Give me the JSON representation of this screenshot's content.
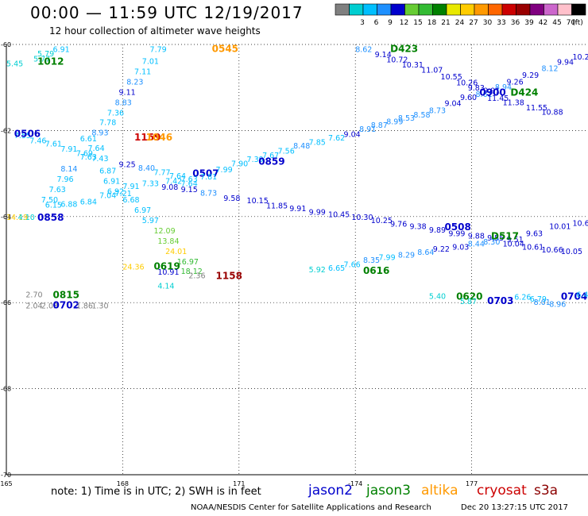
{
  "header": {
    "title": "00:00 — 11:59 UTC 12/19/2017",
    "subtitle": "12 hour collection of altimeter wave heights"
  },
  "footer": {
    "note": "note: 1) Time is in UTC; 2) SWH is in feet",
    "credit": "NOAA/NESDIS Center for Satellite Applications and Research",
    "timestamp": "Dec 20 13:27:15 UTC 2017"
  },
  "satellites": [
    {
      "name": "jason2",
      "color": "#0000cc"
    },
    {
      "name": "jason3",
      "color": "#008000"
    },
    {
      "name": "altika",
      "color": "#ff9900"
    },
    {
      "name": "cryosat",
      "color": "#cc0000"
    },
    {
      "name": "s3a",
      "color": "#8b0000"
    }
  ],
  "legend": {
    "unit": "(ft)",
    "bins": [
      {
        "label": "",
        "color": "#808080"
      },
      {
        "label": "3",
        "color": "#00ced1"
      },
      {
        "label": "6",
        "color": "#00bfff"
      },
      {
        "label": "9",
        "color": "#1e90ff"
      },
      {
        "label": "12",
        "color": "#0000cd"
      },
      {
        "label": "15",
        "color": "#66cc33"
      },
      {
        "label": "18",
        "color": "#33bb33"
      },
      {
        "label": "21",
        "color": "#008000"
      },
      {
        "label": "24",
        "color": "#e8e800"
      },
      {
        "label": "27",
        "color": "#ffcc00"
      },
      {
        "label": "30",
        "color": "#ff9900"
      },
      {
        "label": "33",
        "color": "#ff6600"
      },
      {
        "label": "36",
        "color": "#cc0000"
      },
      {
        "label": "39",
        "color": "#990000"
      },
      {
        "label": "42",
        "color": "#800080"
      },
      {
        "label": "45",
        "color": "#cc66cc"
      },
      {
        "label": "70",
        "color": "#ffc0cb"
      },
      {
        "label": "",
        "color": "#000000"
      }
    ]
  },
  "chart_data": {
    "type": "scatter",
    "title": "00:00 — 11:59 UTC 12/19/2017",
    "subtitle": "12 hour collection of altimeter wave heights",
    "xlim": [
      165,
      180
    ],
    "ylim": [
      -70,
      -60
    ],
    "x_ticks": [
      {
        "v": 165,
        "label": "165"
      },
      {
        "v": 168,
        "label": "168"
      },
      {
        "v": 171,
        "label": "171"
      },
      {
        "v": 174,
        "label": "-174"
      },
      {
        "v": 177,
        "label": "177"
      }
    ],
    "y_ticks": [
      {
        "v": -60,
        "label": "-60"
      },
      {
        "v": -62,
        "label": "-62"
      },
      {
        "v": -64,
        "label": "-64"
      },
      {
        "v": -66,
        "label": "-66"
      },
      {
        "v": -68,
        "label": "-68"
      },
      {
        "v": -70,
        "label": "-70"
      }
    ],
    "grid": true,
    "points": [
      {
        "x": 165.0,
        "y": -60.43,
        "t": "5.45",
        "c": "#00ced1"
      },
      {
        "x": 165.7,
        "y": -60.32,
        "t": "5.77",
        "c": "#00ced1"
      },
      {
        "x": 165.8,
        "y": -60.2,
        "t": "5.79",
        "c": "#00ced1"
      },
      {
        "x": 166.2,
        "y": -60.1,
        "t": "6.91",
        "c": "#00bfff"
      },
      {
        "x": 165.8,
        "y": -60.4,
        "t": "1012",
        "c": "#008000",
        "id": 1
      },
      {
        "x": 168.7,
        "y": -60.1,
        "t": "7.79",
        "c": "#00bfff"
      },
      {
        "x": 168.5,
        "y": -60.38,
        "t": "7.01",
        "c": "#00bfff"
      },
      {
        "x": 168.3,
        "y": -60.62,
        "t": "7.11",
        "c": "#00bfff"
      },
      {
        "x": 168.1,
        "y": -60.86,
        "t": "8.23",
        "c": "#1e90ff"
      },
      {
        "x": 167.9,
        "y": -61.1,
        "t": "9.11",
        "c": "#0000cd"
      },
      {
        "x": 167.8,
        "y": -61.34,
        "t": "8.83",
        "c": "#1e90ff"
      },
      {
        "x": 167.6,
        "y": -61.58,
        "t": "7.36",
        "c": "#00bfff"
      },
      {
        "x": 167.4,
        "y": -61.8,
        "t": "7.78",
        "c": "#00bfff"
      },
      {
        "x": 167.2,
        "y": -62.04,
        "t": "8.93",
        "c": "#1e90ff"
      },
      {
        "x": 170.3,
        "y": -60.1,
        "t": "0545",
        "c": "#ff9900",
        "id": 1
      },
      {
        "x": 165.2,
        "y": -62.1,
        "t": "7.55",
        "c": "#00bfff"
      },
      {
        "x": 165.6,
        "y": -62.22,
        "t": "7.46",
        "c": "#00bfff"
      },
      {
        "x": 166.0,
        "y": -62.3,
        "t": "7.61",
        "c": "#00bfff"
      },
      {
        "x": 166.4,
        "y": -62.42,
        "t": "7.91",
        "c": "#00bfff"
      },
      {
        "x": 166.8,
        "y": -62.52,
        "t": "7.69",
        "c": "#00bfff"
      },
      {
        "x": 166.9,
        "y": -62.18,
        "t": "6.61",
        "c": "#00bfff"
      },
      {
        "x": 167.1,
        "y": -62.4,
        "t": "7.64",
        "c": "#00bfff"
      },
      {
        "x": 167.2,
        "y": -62.64,
        "t": "7.43",
        "c": "#00bfff"
      },
      {
        "x": 166.9,
        "y": -62.6,
        "t": "7.63",
        "c": "#00bfff"
      },
      {
        "x": 166.4,
        "y": -62.88,
        "t": "8.14",
        "c": "#1e90ff"
      },
      {
        "x": 166.3,
        "y": -63.12,
        "t": "7.96",
        "c": "#00bfff"
      },
      {
        "x": 166.1,
        "y": -63.36,
        "t": "7.63",
        "c": "#00bfff"
      },
      {
        "x": 165.9,
        "y": -63.6,
        "t": "7.50",
        "c": "#00bfff"
      },
      {
        "x": 166.0,
        "y": -63.72,
        "t": "6.15",
        "c": "#00bfff"
      },
      {
        "x": 166.4,
        "y": -63.7,
        "t": "6.88",
        "c": "#00bfff"
      },
      {
        "x": 166.9,
        "y": -63.64,
        "t": "6.84",
        "c": "#00bfff"
      },
      {
        "x": 167.4,
        "y": -63.5,
        "t": "7.04",
        "c": "#00bfff"
      },
      {
        "x": 167.8,
        "y": -63.45,
        "t": "7.21",
        "c": "#00bfff"
      },
      {
        "x": 165.2,
        "y": -62.08,
        "t": "0506",
        "c": "#0000cc",
        "id": 1
      },
      {
        "x": 168.3,
        "y": -62.16,
        "t": "1159",
        "c": "#cc0000",
        "id": 1
      },
      {
        "x": 168.6,
        "y": -62.16,
        "t": "1046",
        "c": "#ff9900",
        "id": 1
      },
      {
        "x": 167.9,
        "y": -62.78,
        "t": "9.25",
        "c": "#0000cd"
      },
      {
        "x": 167.4,
        "y": -62.92,
        "t": "6.87",
        "c": "#00bfff"
      },
      {
        "x": 167.5,
        "y": -63.16,
        "t": "6.91",
        "c": "#00bfff"
      },
      {
        "x": 167.6,
        "y": -63.4,
        "t": "6.92",
        "c": "#00bfff"
      },
      {
        "x": 168.0,
        "y": -63.28,
        "t": "7.91",
        "c": "#00bfff"
      },
      {
        "x": 168.5,
        "y": -63.22,
        "t": "7.33",
        "c": "#00bfff"
      },
      {
        "x": 168.0,
        "y": -63.6,
        "t": "6.68",
        "c": "#00bfff"
      },
      {
        "x": 168.3,
        "y": -63.84,
        "t": "6.97",
        "c": "#00bfff"
      },
      {
        "x": 168.5,
        "y": -64.08,
        "t": "5.97",
        "c": "#00bfff"
      },
      {
        "x": 168.4,
        "y": -62.86,
        "t": "8.40",
        "c": "#1e90ff"
      },
      {
        "x": 168.8,
        "y": -62.96,
        "t": "7.77",
        "c": "#00bfff"
      },
      {
        "x": 169.2,
        "y": -63.04,
        "t": "7.64",
        "c": "#00bfff"
      },
      {
        "x": 169.5,
        "y": -63.12,
        "t": "7.63",
        "c": "#00bfff"
      },
      {
        "x": 169.1,
        "y": -63.16,
        "t": "7.42",
        "c": "#00bfff"
      },
      {
        "x": 169.5,
        "y": -63.22,
        "t": "7.64",
        "c": "#00bfff"
      },
      {
        "x": 169.8,
        "y": -63.0,
        "t": "0507",
        "c": "#0000cc",
        "id": 1
      },
      {
        "x": 170.0,
        "y": -63.06,
        "t": "7.81",
        "c": "#00bfff"
      },
      {
        "x": 170.4,
        "y": -62.9,
        "t": "7.99",
        "c": "#00bfff"
      },
      {
        "x": 170.8,
        "y": -62.76,
        "t": "7.90",
        "c": "#00bfff"
      },
      {
        "x": 171.2,
        "y": -62.66,
        "t": "7.39",
        "c": "#00bfff"
      },
      {
        "x": 171.6,
        "y": -62.56,
        "t": "7.67",
        "c": "#00bfff"
      },
      {
        "x": 172.0,
        "y": -62.46,
        "t": "7.56",
        "c": "#00bfff"
      },
      {
        "x": 172.4,
        "y": -62.34,
        "t": "8.48",
        "c": "#1e90ff"
      },
      {
        "x": 172.8,
        "y": -62.26,
        "t": "7.85",
        "c": "#00bfff"
      },
      {
        "x": 173.3,
        "y": -62.16,
        "t": "7.62",
        "c": "#00bfff"
      },
      {
        "x": 171.5,
        "y": -62.72,
        "t": "0859",
        "c": "#0000cc",
        "id": 1
      },
      {
        "x": 173.7,
        "y": -62.08,
        "t": "9.04",
        "c": "#0000cd"
      },
      {
        "x": 174.1,
        "y": -61.96,
        "t": "8.91",
        "c": "#1e90ff"
      },
      {
        "x": 174.4,
        "y": -61.86,
        "t": "8.87",
        "c": "#1e90ff"
      },
      {
        "x": 174.8,
        "y": -61.78,
        "t": "8.99",
        "c": "#1e90ff"
      },
      {
        "x": 175.1,
        "y": -61.7,
        "t": "8.53",
        "c": "#1e90ff"
      },
      {
        "x": 175.5,
        "y": -61.62,
        "t": "8.58",
        "c": "#1e90ff"
      },
      {
        "x": 175.9,
        "y": -61.52,
        "t": "8.73",
        "c": "#1e90ff"
      },
      {
        "x": 176.3,
        "y": -61.36,
        "t": "9.04",
        "c": "#0000cd"
      },
      {
        "x": 176.7,
        "y": -61.22,
        "t": "9.60",
        "c": "#0000cd"
      },
      {
        "x": 177.1,
        "y": -61.14,
        "t": "8.61",
        "c": "#1e90ff"
      },
      {
        "x": 177.3,
        "y": -61.06,
        "t": "9.91",
        "c": "#0000cd"
      },
      {
        "x": 177.6,
        "y": -60.98,
        "t": "8.94",
        "c": "#1e90ff"
      },
      {
        "x": 177.9,
        "y": -60.86,
        "t": "9.26",
        "c": "#0000cd"
      },
      {
        "x": 178.3,
        "y": -60.7,
        "t": "9.29",
        "c": "#0000cd"
      },
      {
        "x": 178.8,
        "y": -60.54,
        "t": "8.12",
        "c": "#1e90ff"
      },
      {
        "x": 179.2,
        "y": -60.4,
        "t": "9.94",
        "c": "#0000cd"
      },
      {
        "x": 179.6,
        "y": -60.28,
        "t": "10.23",
        "c": "#0000cd"
      },
      {
        "x": 177.2,
        "y": -61.12,
        "t": "0900",
        "c": "#0000cc",
        "id": 1
      },
      {
        "x": 178.0,
        "y": -61.12,
        "t": "D424",
        "c": "#008000",
        "id": 1
      },
      {
        "x": 174.0,
        "y": -60.1,
        "t": "8.62",
        "c": "#1e90ff"
      },
      {
        "x": 174.5,
        "y": -60.22,
        "t": "9.14",
        "c": "#0000cd"
      },
      {
        "x": 174.8,
        "y": -60.34,
        "t": "10.72",
        "c": "#0000cd"
      },
      {
        "x": 175.2,
        "y": -60.46,
        "t": "10.31",
        "c": "#0000cd"
      },
      {
        "x": 175.7,
        "y": -60.58,
        "t": "11.07",
        "c": "#0000cd"
      },
      {
        "x": 176.2,
        "y": -60.74,
        "t": "10.55",
        "c": "#0000cd"
      },
      {
        "x": 176.6,
        "y": -60.88,
        "t": "10.26",
        "c": "#0000cd"
      },
      {
        "x": 176.9,
        "y": -61.0,
        "t": "9.83",
        "c": "#0000cd"
      },
      {
        "x": 177.4,
        "y": -61.24,
        "t": "11.45",
        "c": "#0000cd"
      },
      {
        "x": 177.8,
        "y": -61.34,
        "t": "11.38",
        "c": "#0000cd"
      },
      {
        "x": 178.4,
        "y": -61.46,
        "t": "11.55",
        "c": "#0000cd"
      },
      {
        "x": 178.8,
        "y": -61.56,
        "t": "10.88",
        "c": "#0000cd"
      },
      {
        "x": 174.9,
        "y": -60.1,
        "t": "D423",
        "c": "#008000",
        "id": 1
      },
      {
        "x": 169.0,
        "y": -63.3,
        "t": "9.08",
        "c": "#0000cd"
      },
      {
        "x": 169.5,
        "y": -63.36,
        "t": "9.15",
        "c": "#0000cd"
      },
      {
        "x": 170.0,
        "y": -63.44,
        "t": "8.73",
        "c": "#1e90ff"
      },
      {
        "x": 170.6,
        "y": -63.56,
        "t": "9.58",
        "c": "#0000cd"
      },
      {
        "x": 171.2,
        "y": -63.62,
        "t": "10.15",
        "c": "#0000cd"
      },
      {
        "x": 171.7,
        "y": -63.74,
        "t": "11.85",
        "c": "#0000cd"
      },
      {
        "x": 172.3,
        "y": -63.8,
        "t": "9.91",
        "c": "#0000cd"
      },
      {
        "x": 172.8,
        "y": -63.88,
        "t": "9.99",
        "c": "#0000cd"
      },
      {
        "x": 173.3,
        "y": -63.94,
        "t": "10.45",
        "c": "#0000cd"
      },
      {
        "x": 173.9,
        "y": -64.0,
        "t": "10.30",
        "c": "#0000cd"
      },
      {
        "x": 174.4,
        "y": -64.08,
        "t": "10.25",
        "c": "#0000cd"
      },
      {
        "x": 174.9,
        "y": -64.16,
        "t": "9.76",
        "c": "#0000cd"
      },
      {
        "x": 175.4,
        "y": -64.22,
        "t": "9.38",
        "c": "#0000cd"
      },
      {
        "x": 175.9,
        "y": -64.3,
        "t": "9.89",
        "c": "#0000cd"
      },
      {
        "x": 176.4,
        "y": -64.38,
        "t": "9.99",
        "c": "#0000cd"
      },
      {
        "x": 176.9,
        "y": -64.44,
        "t": "9.88",
        "c": "#0000cd"
      },
      {
        "x": 177.4,
        "y": -64.48,
        "t": "9.55",
        "c": "#0000cd"
      },
      {
        "x": 177.9,
        "y": -64.52,
        "t": "9.51",
        "c": "#0000cd"
      },
      {
        "x": 178.4,
        "y": -64.38,
        "t": "9.63",
        "c": "#0000cd"
      },
      {
        "x": 179.0,
        "y": -64.22,
        "t": "10.01",
        "c": "#0000cd"
      },
      {
        "x": 179.6,
        "y": -64.14,
        "t": "10.63",
        "c": "#0000cd"
      },
      {
        "x": 176.3,
        "y": -64.24,
        "t": "0508",
        "c": "#0000cc",
        "id": 1
      },
      {
        "x": 177.5,
        "y": -64.46,
        "t": "D517",
        "c": "#008000",
        "id": 1
      },
      {
        "x": 165.0,
        "y": -64.0,
        "t": "14.19",
        "c": "#ffcc00"
      },
      {
        "x": 165.3,
        "y": -64.0,
        "t": "4.10",
        "c": "#00ced1"
      },
      {
        "x": 165.8,
        "y": -64.02,
        "t": "0858",
        "c": "#0000cc",
        "id": 1
      },
      {
        "x": 168.8,
        "y": -64.32,
        "t": "12.09",
        "c": "#66cc33"
      },
      {
        "x": 168.9,
        "y": -64.56,
        "t": "13.84",
        "c": "#66cc33"
      },
      {
        "x": 169.1,
        "y": -64.8,
        "t": "24.01",
        "c": "#ffcc00"
      },
      {
        "x": 169.4,
        "y": -65.04,
        "t": "16.97",
        "c": "#33bb33"
      },
      {
        "x": 169.5,
        "y": -65.26,
        "t": "18.12",
        "c": "#33bb33"
      },
      {
        "x": 168.0,
        "y": -65.16,
        "t": "24.36",
        "c": "#ffcc00"
      },
      {
        "x": 168.8,
        "y": -65.16,
        "t": "0619",
        "c": "#008000",
        "id": 1
      },
      {
        "x": 168.9,
        "y": -65.28,
        "t": "10.91",
        "c": "#0000cd"
      },
      {
        "x": 169.7,
        "y": -65.36,
        "t": "2.36",
        "c": "#808080"
      },
      {
        "x": 168.9,
        "y": -65.6,
        "t": "4.14",
        "c": "#00ced1"
      },
      {
        "x": 170.4,
        "y": -65.38,
        "t": "1158",
        "c": "#990000",
        "id": 1
      },
      {
        "x": 172.8,
        "y": -65.22,
        "t": "5.92",
        "c": "#00ced1"
      },
      {
        "x": 173.3,
        "y": -65.18,
        "t": "6.65",
        "c": "#00bfff"
      },
      {
        "x": 173.7,
        "y": -65.1,
        "t": "7.66",
        "c": "#00bfff"
      },
      {
        "x": 174.2,
        "y": -65.0,
        "t": "8.35",
        "c": "#1e90ff"
      },
      {
        "x": 174.6,
        "y": -64.94,
        "t": "7.99",
        "c": "#00bfff"
      },
      {
        "x": 175.1,
        "y": -64.88,
        "t": "8.29",
        "c": "#1e90ff"
      },
      {
        "x": 175.6,
        "y": -64.82,
        "t": "8.64",
        "c": "#1e90ff"
      },
      {
        "x": 176.0,
        "y": -64.74,
        "t": "9.22",
        "c": "#0000cd"
      },
      {
        "x": 176.5,
        "y": -64.7,
        "t": "9.03",
        "c": "#0000cd"
      },
      {
        "x": 176.9,
        "y": -64.62,
        "t": "8.44",
        "c": "#1e90ff"
      },
      {
        "x": 177.3,
        "y": -64.58,
        "t": "8.30",
        "c": "#1e90ff"
      },
      {
        "x": 177.8,
        "y": -64.62,
        "t": "10.04",
        "c": "#0000cd"
      },
      {
        "x": 178.3,
        "y": -64.7,
        "t": "10.61",
        "c": "#0000cd"
      },
      {
        "x": 178.8,
        "y": -64.76,
        "t": "10.66",
        "c": "#0000cd"
      },
      {
        "x": 179.3,
        "y": -64.8,
        "t": "10.05",
        "c": "#0000cd"
      },
      {
        "x": 174.2,
        "y": -65.26,
        "t": "0616",
        "c": "#008000",
        "id": 1
      },
      {
        "x": 165.5,
        "y": -65.8,
        "t": "2.70",
        "c": "#808080"
      },
      {
        "x": 166.2,
        "y": -65.82,
        "t": "0815",
        "c": "#008000",
        "id": 1
      },
      {
        "x": 165.5,
        "y": -66.06,
        "t": "2.04",
        "c": "#808080"
      },
      {
        "x": 165.9,
        "y": -66.06,
        "t": "2.03",
        "c": "#808080"
      },
      {
        "x": 166.2,
        "y": -66.06,
        "t": "0702",
        "c": "#0000cc",
        "id": 1
      },
      {
        "x": 166.8,
        "y": -66.06,
        "t": "1.86",
        "c": "#808080"
      },
      {
        "x": 167.2,
        "y": -66.06,
        "t": "1.30",
        "c": "#808080"
      },
      {
        "x": 175.9,
        "y": -65.84,
        "t": "5.40",
        "c": "#00ced1"
      },
      {
        "x": 176.6,
        "y": -65.86,
        "t": "0620",
        "c": "#008000",
        "id": 1
      },
      {
        "x": 176.7,
        "y": -65.96,
        "t": "5.87",
        "c": "#00ced1"
      },
      {
        "x": 177.4,
        "y": -65.96,
        "t": "0703",
        "c": "#0000cc",
        "id": 1
      },
      {
        "x": 178.1,
        "y": -65.86,
        "t": "6.26",
        "c": "#00bfff"
      },
      {
        "x": 178.5,
        "y": -65.9,
        "t": "6.79",
        "c": "#00bfff"
      },
      {
        "x": 178.6,
        "y": -65.98,
        "t": "8.01",
        "c": "#1e90ff"
      },
      {
        "x": 179.0,
        "y": -66.02,
        "t": "8.96",
        "c": "#1e90ff"
      },
      {
        "x": 179.3,
        "y": -65.86,
        "t": "0704",
        "c": "#0000cc",
        "id": 1
      },
      {
        "x": 179.7,
        "y": -65.8,
        "t": "6.48",
        "c": "#00bfff"
      }
    ]
  }
}
